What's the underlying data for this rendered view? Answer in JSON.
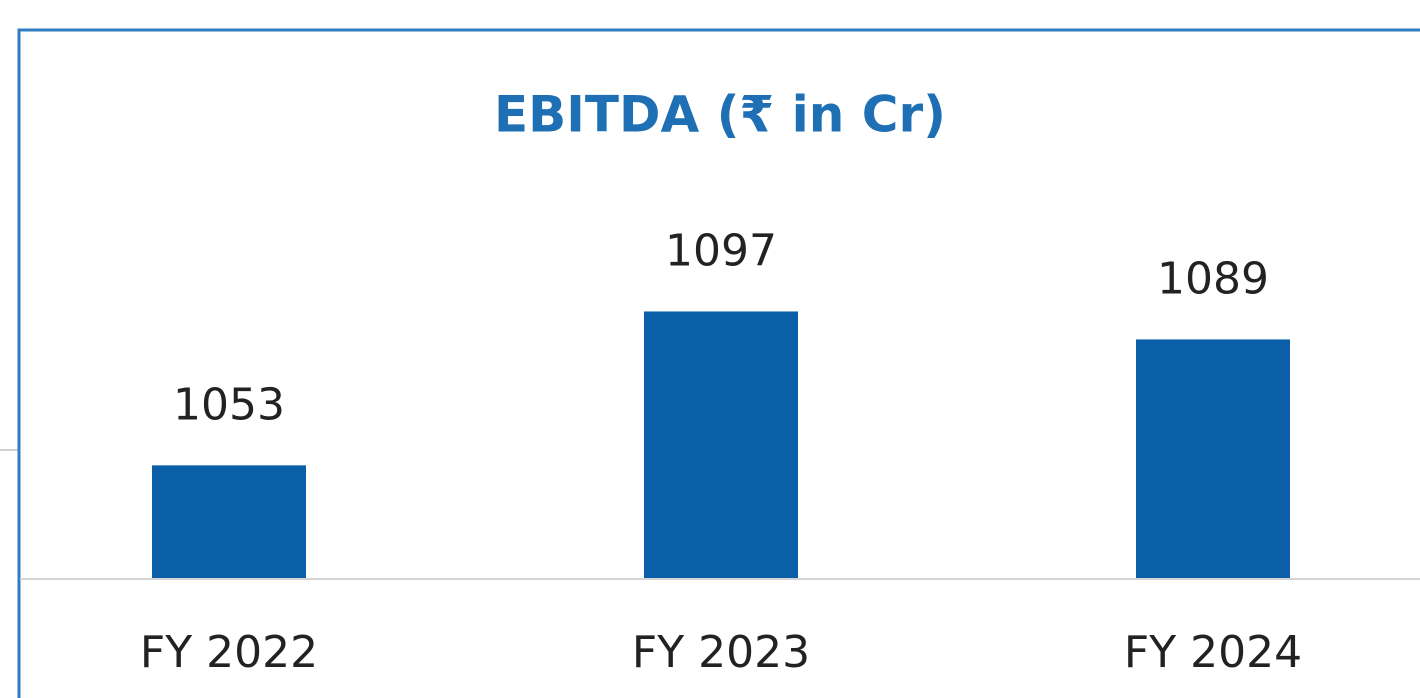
{
  "chart_data": {
    "type": "bar",
    "title": "EBITDA (₹ in Cr)",
    "categories": [
      "FY 2022",
      "FY 2023",
      "FY 2024"
    ],
    "values": [
      1053,
      1097,
      1089
    ],
    "color": "#0b5fa8",
    "ylim": [
      1020.5,
      1110
    ]
  }
}
